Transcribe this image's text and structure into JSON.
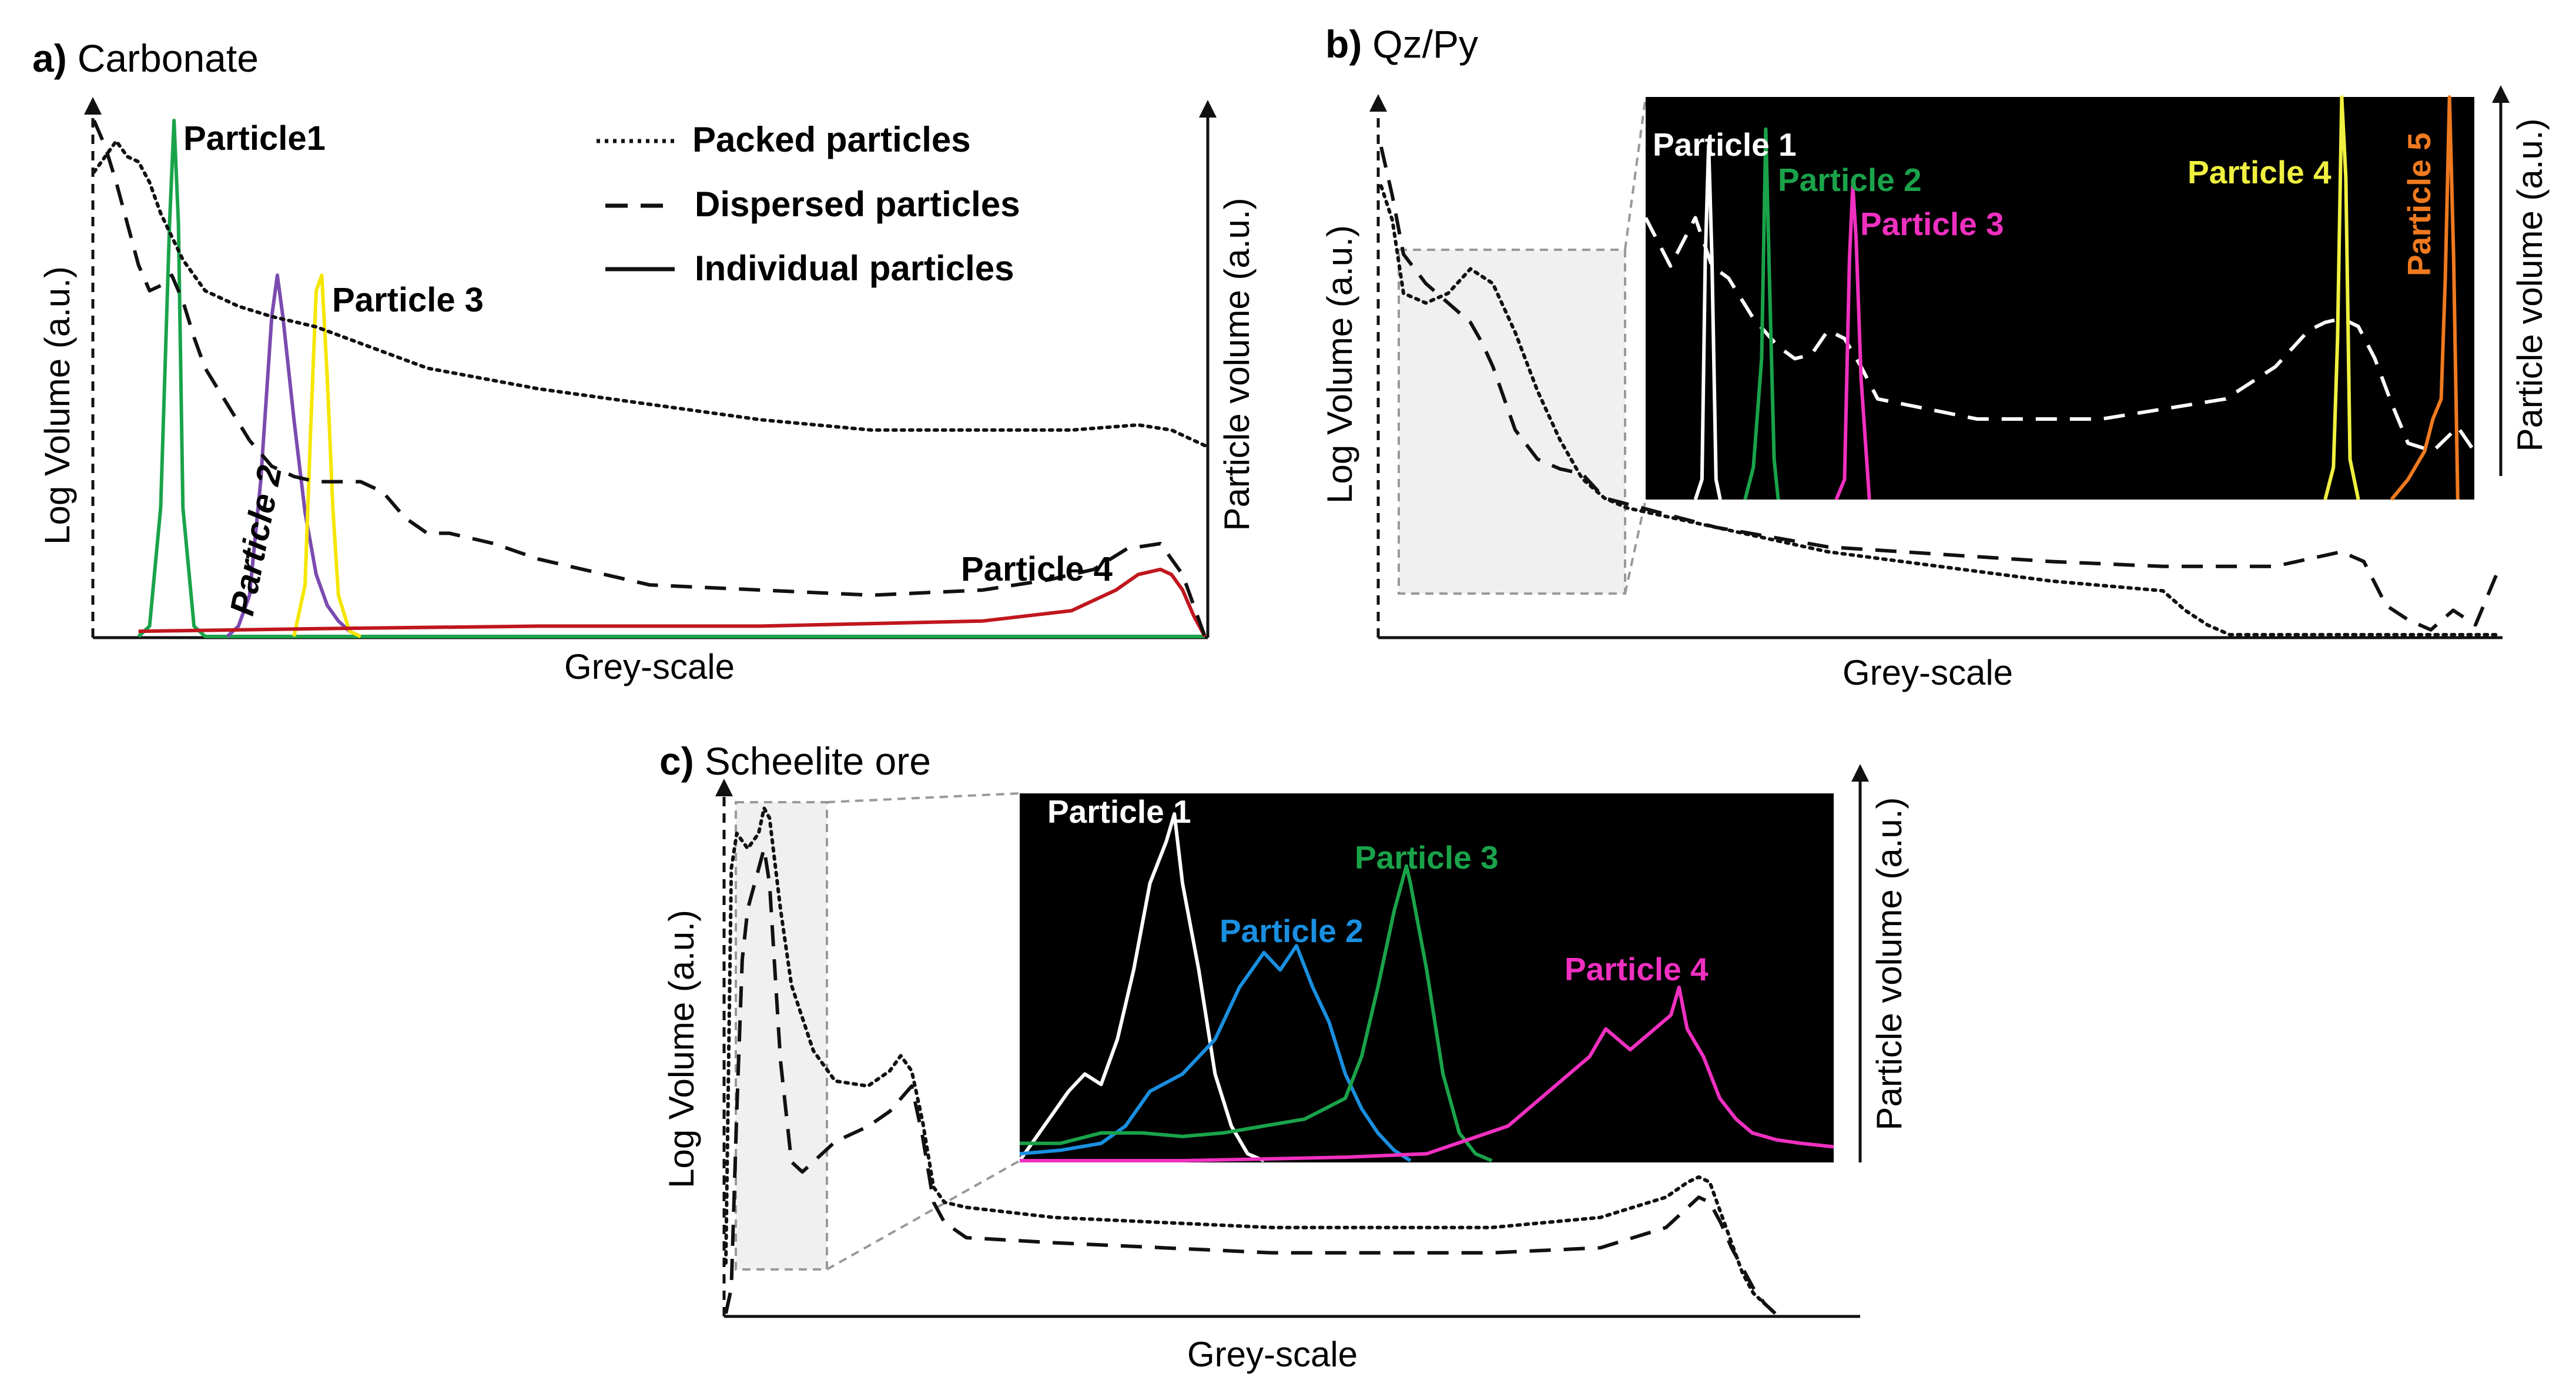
{
  "chart_data": [
    {
      "panel": "a",
      "type": "line",
      "panel_letter": "a)",
      "title": "Carbonate",
      "xlabel": "Grey-scale",
      "ylabel_left": "Log Volume (a.u.)",
      "ylabel_right": "Particle volume (a.u.)",
      "xlim": [
        0,
        100
      ],
      "ylim": [
        0,
        100
      ],
      "legend": [
        {
          "style": "dotted",
          "label": "Packed particles"
        },
        {
          "style": "dashed",
          "label": "Dispersed particles"
        },
        {
          "style": "solid",
          "label": "Individual particles"
        }
      ],
      "series": [
        {
          "name": "Packed particles",
          "style": "dotted",
          "color": "#111111",
          "x": [
            0,
            1,
            2,
            3,
            4,
            5,
            6,
            8,
            10,
            13,
            16,
            20,
            25,
            30,
            40,
            50,
            60,
            70,
            80,
            88,
            94,
            97,
            100
          ],
          "y": [
            90,
            93,
            96,
            93,
            92,
            88,
            82,
            73,
            67,
            64,
            62,
            60,
            56,
            52,
            48,
            45,
            42,
            40,
            40,
            40,
            41,
            40,
            37
          ]
        },
        {
          "name": "Dispersed particles",
          "style": "dashed",
          "color": "#111111",
          "x": [
            0,
            1,
            2,
            3,
            4,
            5,
            6,
            7,
            8,
            9,
            10,
            12,
            14,
            16,
            18,
            20,
            22,
            24,
            26,
            28,
            30,
            32,
            36,
            40,
            50,
            60,
            70,
            80,
            86,
            90,
            93,
            96,
            98,
            100
          ],
          "y": [
            100,
            95,
            88,
            80,
            72,
            67,
            68,
            70,
            65,
            58,
            52,
            45,
            38,
            33,
            31,
            30,
            30,
            30,
            28,
            23,
            20,
            20,
            18,
            15,
            10,
            9,
            8,
            9,
            11,
            13,
            17,
            18,
            12,
            0
          ]
        },
        {
          "name": "Particle 1",
          "style": "solid",
          "color": "#1aa34a",
          "x": [
            4,
            5,
            6,
            6.8,
            7.2,
            7.6,
            8,
            9,
            10,
            100
          ],
          "y": [
            0,
            2,
            25,
            80,
            100,
            80,
            25,
            2,
            0,
            0
          ]
        },
        {
          "name": "Particle 2",
          "style": "solid",
          "color": "#7b4bb0",
          "x": [
            12,
            13,
            14,
            15,
            16,
            16.5,
            17,
            18,
            19,
            20,
            21,
            22,
            23,
            24
          ],
          "y": [
            0,
            2,
            8,
            30,
            62,
            70,
            62,
            42,
            24,
            12,
            6,
            3,
            1,
            0
          ]
        },
        {
          "name": "Particle 3",
          "style": "solid",
          "color": "#f5e600",
          "x": [
            18,
            19,
            19.5,
            20,
            20.5,
            21,
            21.5,
            22,
            23,
            24
          ],
          "y": [
            0,
            10,
            40,
            67,
            70,
            50,
            25,
            8,
            1,
            0
          ]
        },
        {
          "name": "Particle 4",
          "style": "solid",
          "color": "#c0161d",
          "x": [
            4,
            20,
            40,
            60,
            80,
            88,
            92,
            94,
            96,
            97,
            98,
            99,
            100
          ],
          "y": [
            1,
            1.5,
            2,
            2,
            3,
            5,
            9,
            12,
            13,
            12,
            9,
            4,
            0
          ]
        }
      ],
      "annotations": [
        "Particle1",
        "Particle 2",
        "Particle 3",
        "Particle 4"
      ]
    },
    {
      "panel": "b",
      "type": "line",
      "panel_letter": "b)",
      "title": "Qz/Py",
      "xlabel": "Grey-scale",
      "ylabel_left": "Log Volume (a.u.)",
      "ylabel_right": "Particle volume (a.u.)",
      "xlim": [
        0,
        100
      ],
      "ylim": [
        0,
        100
      ],
      "series": [
        {
          "name": "Packed particles",
          "style": "dotted",
          "color": "#111111",
          "x": [
            0,
            1,
            2,
            4,
            6,
            8,
            10,
            12,
            14,
            16,
            18,
            20,
            22,
            30,
            40,
            50,
            60,
            70,
            72,
            74,
            76,
            80,
            90,
            100
          ],
          "y": [
            92,
            85,
            70,
            68,
            70,
            75,
            72,
            62,
            50,
            40,
            32,
            28,
            26,
            22,
            17,
            14,
            11,
            9,
            5,
            2,
            0,
            0,
            0,
            0
          ]
        },
        {
          "name": "Dispersed particles",
          "style": "dashed",
          "color": "#111111",
          "x": [
            0,
            1,
            2,
            4,
            6,
            8,
            9,
            10,
            12,
            14,
            16,
            18,
            20,
            30,
            40,
            60,
            70,
            80,
            86,
            88,
            90,
            92,
            94,
            96,
            98,
            100
          ],
          "y": [
            100,
            90,
            78,
            72,
            68,
            64,
            60,
            55,
            42,
            36,
            34,
            33,
            28,
            22,
            18,
            15,
            14,
            14,
            17,
            15,
            6,
            3,
            1,
            5,
            2,
            13
          ]
        }
      ],
      "inset": {
        "xlim": [
          0,
          100
        ],
        "ylim": [
          0,
          100
        ],
        "series": [
          {
            "name": "Dispersed particles (zoom)",
            "style": "dashed",
            "color": "#ffffff",
            "x": [
              0,
              3,
              6,
              8,
              10,
              13,
              16,
              18,
              20,
              22,
              24,
              26,
              28,
              40,
              55,
              70,
              76,
              80,
              82,
              84,
              86,
              88,
              90,
              92,
              95,
              98,
              100
            ],
            "y": [
              70,
              58,
              70,
              58,
              55,
              45,
              38,
              35,
              36,
              42,
              40,
              33,
              25,
              20,
              20,
              25,
              33,
              42,
              44,
              45,
              43,
              35,
              24,
              14,
              12,
              18,
              12
            ]
          },
          {
            "name": "Particle 1",
            "style": "solid",
            "color": "#ffffff",
            "x": [
              6,
              6.8,
              7.2,
              7.6,
              8,
              8.5,
              9
            ],
            "y": [
              0,
              5,
              60,
              88,
              60,
              5,
              0
            ]
          },
          {
            "name": "Particle 2",
            "style": "solid",
            "color": "#1aa34a",
            "x": [
              12,
              13,
              14,
              14.5,
              15,
              15.5,
              16
            ],
            "y": [
              0,
              8,
              35,
              92,
              50,
              10,
              0
            ]
          },
          {
            "name": "Particle 3",
            "style": "solid",
            "color": "#f030c0",
            "x": [
              23,
              24,
              24.6,
              25,
              25.4,
              26,
              27
            ],
            "y": [
              0,
              5,
              60,
              78,
              65,
              30,
              0
            ]
          },
          {
            "name": "Particle 4",
            "style": "solid",
            "color": "#f0f040",
            "x": [
              82,
              83,
              83.5,
              84,
              84.5,
              85,
              86
            ],
            "y": [
              0,
              8,
              40,
              100,
              80,
              10,
              0
            ]
          },
          {
            "name": "Particle 5",
            "style": "solid",
            "color": "#f07a20",
            "x": [
              90,
              92,
              94,
              95,
              96,
              96.5,
              97,
              97.5,
              98
            ],
            "y": [
              0,
              5,
              12,
              20,
              25,
              55,
              100,
              60,
              0
            ]
          }
        ]
      },
      "annotations": [
        "Particle 1",
        "Particle 2",
        "Particle 3",
        "Particle 4",
        "Particle 5"
      ]
    },
    {
      "panel": "c",
      "type": "line",
      "panel_letter": "c)",
      "title": "Scheelite ore",
      "xlabel": "Grey-scale",
      "ylabel_left": "Log Volume (a.u.)",
      "ylabel_right": "Particle volume (a.u.)",
      "xlim": [
        0,
        100
      ],
      "ylim": [
        0,
        100
      ],
      "series": [
        {
          "name": "Packed particles",
          "style": "dotted",
          "color": "#111111",
          "x": [
            0,
            0.5,
            1,
            2,
            3,
            3.5,
            4,
            5,
            6,
            8,
            10,
            13,
            15,
            16,
            17,
            18,
            19,
            20,
            22,
            30,
            40,
            50,
            60,
            70,
            80,
            86,
            88,
            89,
            90,
            91,
            92,
            93,
            94,
            95,
            96
          ],
          "y": [
            10,
            88,
            95,
            92,
            95,
            100,
            98,
            80,
            65,
            52,
            46,
            45,
            48,
            51,
            48,
            38,
            25,
            22,
            21,
            19,
            18,
            17,
            17,
            17,
            19,
            23,
            26,
            27,
            26,
            20,
            14,
            8,
            4,
            2,
            0
          ]
        },
        {
          "name": "Dispersed particles",
          "style": "dashed",
          "color": "#111111",
          "x": [
            0,
            0.5,
            1,
            1.5,
            2,
            3,
            3.5,
            4,
            5,
            6,
            7,
            8,
            10,
            13,
            15,
            17,
            18,
            19,
            20,
            22,
            30,
            40,
            50,
            60,
            70,
            80,
            86,
            88,
            89,
            90,
            91,
            92,
            93,
            94,
            95,
            96
          ],
          "y": [
            0,
            5,
            40,
            70,
            80,
            88,
            92,
            85,
            50,
            30,
            28,
            30,
            34,
            37,
            40,
            45,
            35,
            22,
            18,
            15,
            14,
            13,
            12,
            12,
            12,
            13,
            17,
            21,
            23,
            22,
            18,
            13,
            9,
            5,
            2,
            0
          ]
        }
      ],
      "inset": {
        "xlim": [
          0,
          100
        ],
        "ylim": [
          0,
          100
        ],
        "series": [
          {
            "name": "Particle 1",
            "style": "solid",
            "color": "#ffffff",
            "x": [
              0,
              3,
              6,
              8,
              10,
              12,
              14,
              16,
              18,
              19,
              20,
              22,
              24,
              26,
              28,
              30
            ],
            "y": [
              0,
              10,
              20,
              25,
              22,
              35,
              55,
              80,
              92,
              100,
              80,
              55,
              25,
              10,
              2,
              0
            ]
          },
          {
            "name": "Particle 2",
            "style": "solid",
            "color": "#1a8fe0",
            "x": [
              0,
              5,
              10,
              13,
              16,
              20,
              24,
              27,
              30,
              32,
              34,
              36,
              38,
              40,
              42,
              44,
              46,
              48
            ],
            "y": [
              2,
              3,
              5,
              10,
              20,
              25,
              35,
              50,
              60,
              55,
              62,
              50,
              40,
              25,
              15,
              8,
              3,
              0
            ]
          },
          {
            "name": "Particle 3",
            "style": "solid",
            "color": "#1aa34a",
            "x": [
              0,
              5,
              10,
              15,
              20,
              25,
              30,
              35,
              40,
              42,
              44,
              46,
              47.5,
              48,
              50,
              52,
              54,
              56,
              58
            ],
            "y": [
              5,
              5,
              8,
              8,
              7,
              8,
              10,
              12,
              18,
              30,
              50,
              72,
              85,
              80,
              55,
              25,
              8,
              2,
              0
            ]
          },
          {
            "name": "Particle 4",
            "style": "solid",
            "color": "#f030c0",
            "x": [
              0,
              20,
              40,
              50,
              55,
              60,
              65,
              70,
              72,
              75,
              78,
              80,
              81,
              82,
              84,
              86,
              88,
              90,
              93,
              96,
              100
            ],
            "y": [
              0,
              0,
              1,
              2,
              6,
              10,
              20,
              30,
              38,
              32,
              38,
              42,
              50,
              38,
              30,
              18,
              12,
              8,
              6,
              5,
              4
            ]
          }
        ]
      },
      "annotations": [
        "Particle 1",
        "Particle 2",
        "Particle 3",
        "Particle 4"
      ]
    }
  ]
}
